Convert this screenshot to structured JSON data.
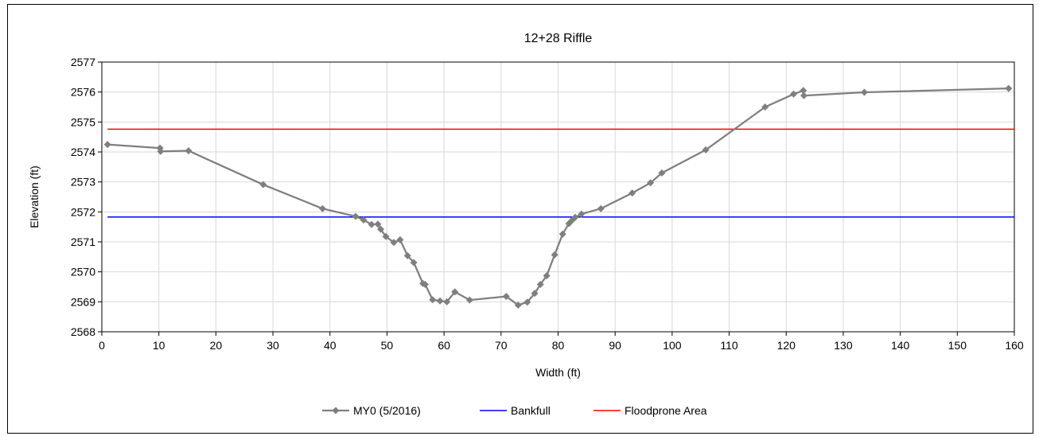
{
  "chart_data": {
    "type": "line",
    "title": "12+28 Riffle",
    "xlabel": "Width (ft)",
    "ylabel": "Elevation (ft)",
    "xlim": [
      0,
      160
    ],
    "ylim": [
      2568,
      2577
    ],
    "xticks": [
      0,
      10,
      20,
      30,
      40,
      50,
      60,
      70,
      80,
      90,
      100,
      110,
      120,
      130,
      140,
      150,
      160
    ],
    "yticks": [
      2568,
      2569,
      2570,
      2571,
      2572,
      2573,
      2574,
      2575,
      2576,
      2577
    ],
    "grid": true,
    "legend_position": "bottom",
    "series": [
      {
        "name": "MY0 (5/2016)",
        "color": "#7f7f7f",
        "marker": "diamond",
        "x": [
          1.0,
          10.2,
          10.3,
          15.2,
          28.3,
          38.7,
          44.5,
          45.9,
          47.3,
          48.4,
          48.9,
          49.8,
          51.2,
          52.3,
          53.6,
          54.7,
          56.3,
          56.7,
          58.0,
          59.3,
          60.5,
          61.9,
          64.5,
          70.9,
          73.0,
          74.6,
          75.9,
          76.9,
          78.0,
          79.4,
          80.8,
          81.9,
          82.5,
          83.0,
          84.1,
          87.5,
          93.0,
          96.2,
          98.2,
          105.9,
          116.3,
          121.3,
          123.0,
          123.1,
          133.7,
          159.0
        ],
        "y": [
          2574.25,
          2574.13,
          2574.02,
          2574.04,
          2572.91,
          2572.11,
          2571.85,
          2571.73,
          2571.58,
          2571.59,
          2571.42,
          2571.18,
          2570.98,
          2571.07,
          2570.54,
          2570.31,
          2569.61,
          2569.58,
          2569.07,
          2569.03,
          2569.0,
          2569.33,
          2569.06,
          2569.18,
          2568.89,
          2568.99,
          2569.28,
          2569.58,
          2569.87,
          2570.57,
          2571.26,
          2571.61,
          2571.73,
          2571.82,
          2571.93,
          2572.11,
          2572.63,
          2572.97,
          2573.3,
          2574.07,
          2575.5,
          2575.93,
          2576.05,
          2575.88,
          2575.99,
          2576.12
        ]
      },
      {
        "name": "Bankfull",
        "color": "#0000ff",
        "marker": "none",
        "x": [
          1.0,
          160
        ],
        "y": [
          2571.83,
          2571.83
        ]
      },
      {
        "name": "Floodprone Area",
        "color": "#ff0000",
        "marker": "none",
        "x": [
          1.0,
          160
        ],
        "y": [
          2574.76,
          2574.76
        ]
      }
    ]
  }
}
